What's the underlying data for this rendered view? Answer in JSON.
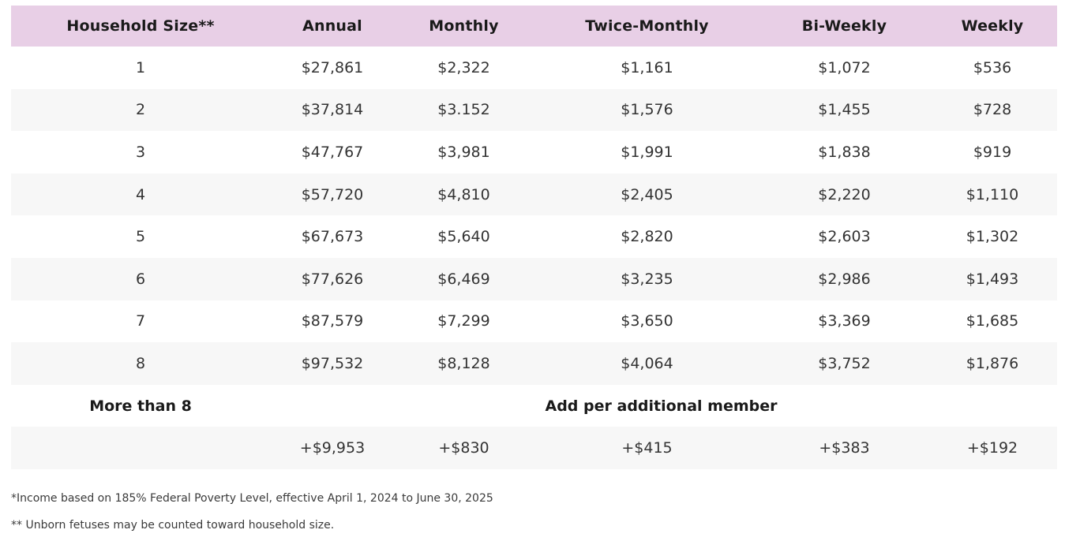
{
  "table": {
    "headers": [
      "Household Size**",
      "Annual",
      "Monthly",
      "Twice-Monthly",
      "Bi-Weekly",
      "Weekly"
    ],
    "rows": [
      [
        "1",
        "$27,861",
        "$2,322",
        "$1,161",
        "$1,072",
        "$536"
      ],
      [
        "2",
        "$37,814",
        "$3.152",
        "$1,576",
        "$1,455",
        "$728"
      ],
      [
        "3",
        "$47,767",
        "$3,981",
        "$1,991",
        "$1,838",
        "$919"
      ],
      [
        "4",
        "$57,720",
        "$4,810",
        "$2,405",
        "$2,220",
        "$1,110"
      ],
      [
        "5",
        "$67,673",
        "$5,640",
        "$2,820",
        "$2,603",
        "$1,302"
      ],
      [
        "6",
        "$77,626",
        "$6,469",
        "$3,235",
        "$2,986",
        "$1,493"
      ],
      [
        "7",
        "$87,579",
        "$7,299",
        "$3,650",
        "$3,369",
        "$1,685"
      ],
      [
        "8",
        "$97,532",
        "$8,128",
        "$4,064",
        "$3,752",
        "$1,876"
      ]
    ],
    "more_than_label": "More than 8",
    "add_per_member_label": "Add per additional member",
    "additional_row": [
      "+$9,953",
      "+$830",
      "+$415",
      "+$383",
      "+$192"
    ]
  },
  "notes": {
    "income_note": "*Income based on 185% Federal Poverty Level, effective April 1, 2024 to June 30, 2025",
    "fetus_note": "** Unborn fetuses may be counted toward household size."
  },
  "colors": {
    "header_bg": "#e8cfe6",
    "alt_row_bg": "#f7f7f7"
  }
}
